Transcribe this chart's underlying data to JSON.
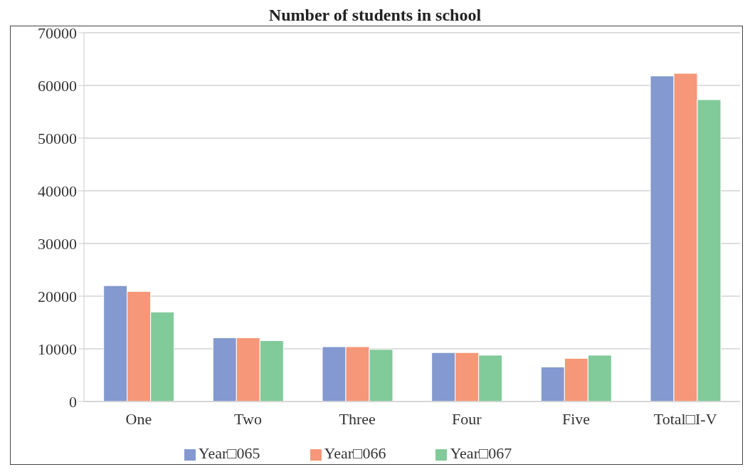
{
  "chart_data": {
    "type": "bar",
    "title": "Number of students in school",
    "categories": [
      "One",
      "Two",
      "Three",
      "Four",
      "Five",
      "Total□I-V"
    ],
    "series": [
      {
        "name": "Year□065",
        "color": "#8399cf",
        "values": [
          22000,
          12100,
          10400,
          9300,
          6550,
          61800
        ]
      },
      {
        "name": "Year□066",
        "color": "#f59778",
        "values": [
          20900,
          12100,
          10400,
          9300,
          8200,
          62300
        ]
      },
      {
        "name": "Year□067",
        "color": "#81ca9a",
        "values": [
          17000,
          11550,
          9900,
          8800,
          8800,
          57300
        ]
      }
    ],
    "ylim": [
      0,
      70000
    ],
    "yticks": [
      0,
      10000,
      20000,
      30000,
      40000,
      50000,
      60000,
      70000
    ],
    "grid": "y",
    "legend": "bottom"
  }
}
